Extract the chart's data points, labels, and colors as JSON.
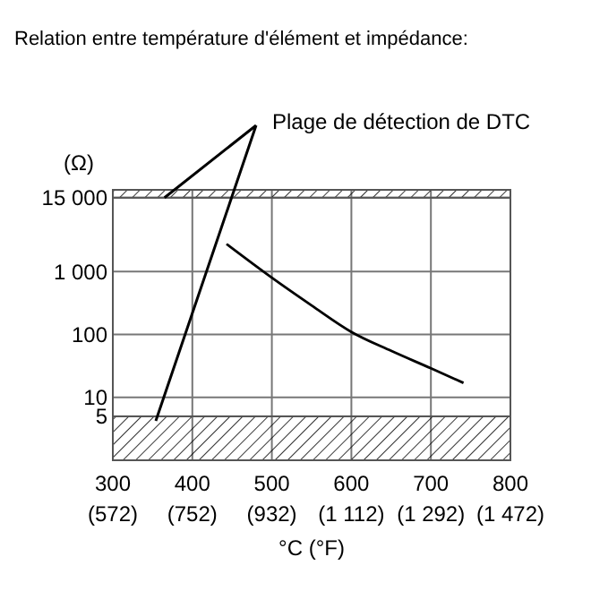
{
  "chart_data": {
    "type": "line",
    "title": "Relation entre température d'élément et impédance:",
    "xlabel": "°C (°F)",
    "ylabel": "(Ω)",
    "log": "y",
    "grid": true,
    "marker": "none",
    "line_style": "solid",
    "x": [
      443,
      500,
      550,
      600,
      650,
      700,
      741
    ],
    "series": [
      {
        "color": "#000000",
        "values": [
          2750,
          800,
          290,
          110,
          55,
          29,
          17
        ]
      }
    ],
    "xlim": [
      300,
      800
    ],
    "xticks": [
      300,
      400,
      500,
      600,
      700,
      800
    ],
    "x2lim": [
      572,
      1472
    ],
    "x2ticks": [
      {
        "value": 572,
        "label": "(572)"
      },
      {
        "value": 752,
        "label": "(752)"
      },
      {
        "value": 932,
        "label": "(932)"
      },
      {
        "value": 1112,
        "label": "(1 112)"
      },
      {
        "value": 1292,
        "label": "(1 292)"
      },
      {
        "value": 1472,
        "label": "(1 472)"
      }
    ],
    "ylim": [
      1,
      20000
    ],
    "yticks": [
      5,
      10,
      100,
      {
        "value": 1000,
        "label": "1 000"
      },
      {
        "value": 15000,
        "label": "15 000"
      }
    ],
    "bands": [
      {
        "axis": "y",
        "from": 15000,
        "to": 20000
      },
      {
        "axis": "y",
        "from": 1,
        "to": 5
      }
    ],
    "annotations": [
      {
        "text": "Plage de détection de DTC",
        "x": 365,
        "y": 15000
      }
    ]
  }
}
